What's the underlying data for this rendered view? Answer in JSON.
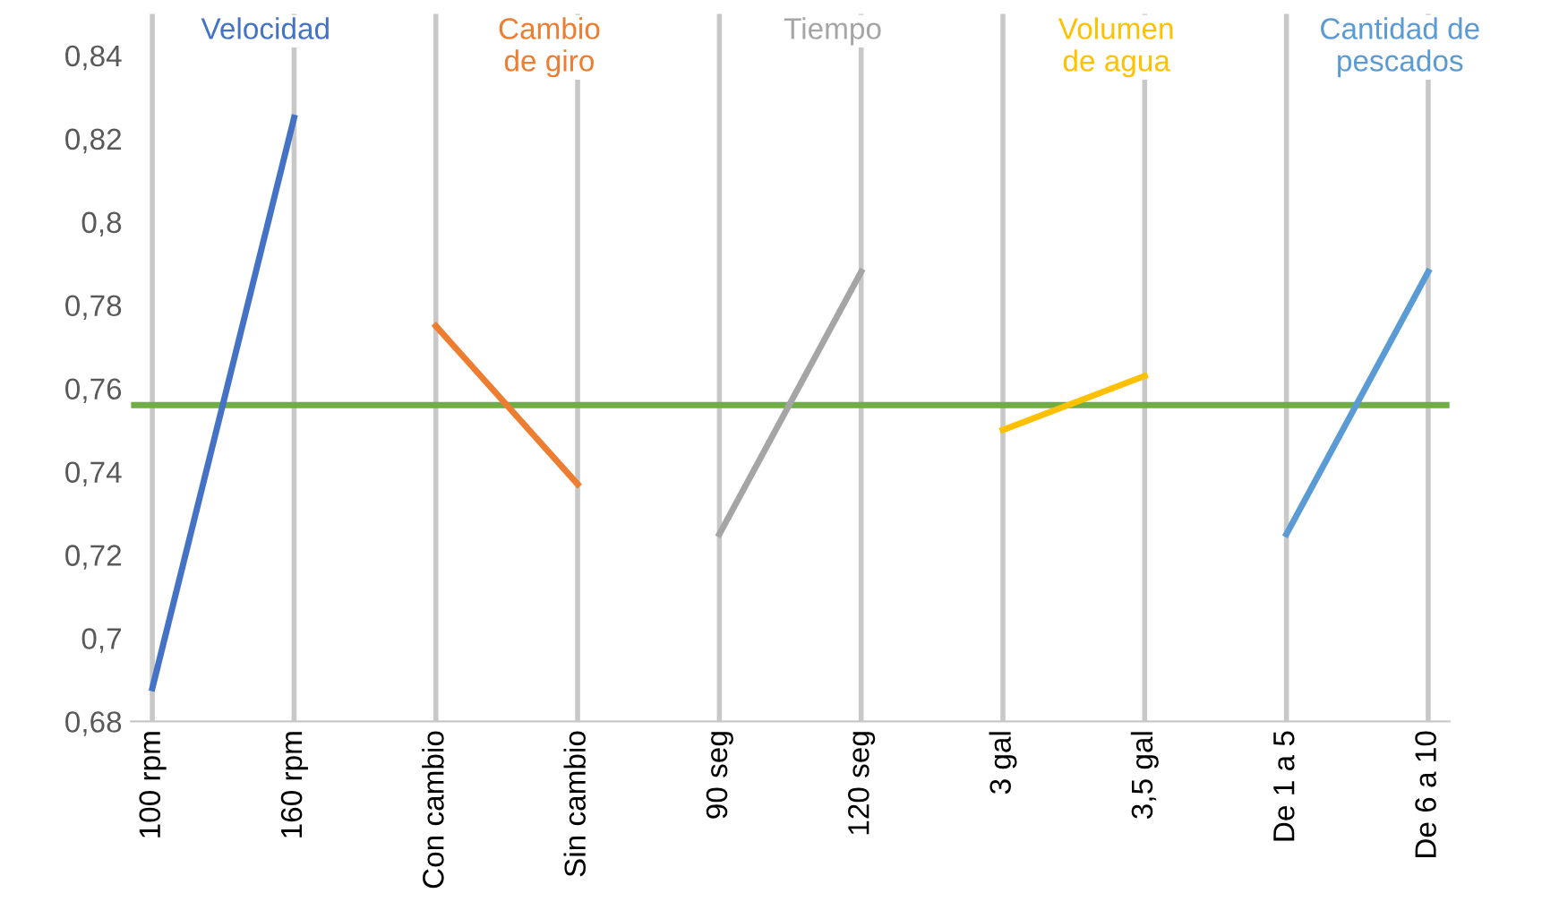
{
  "chart_data": {
    "type": "line",
    "categories": [
      "100 rpm",
      "160 rpm",
      "Con cambio",
      "Sin cambio",
      "90 seg",
      "120 seg",
      "3 gal",
      "3,5 gal",
      "De 1 a 5",
      "De 6 a 10"
    ],
    "series": [
      {
        "name": "Velocidad",
        "color": "#4472c4",
        "values": [
          0.688,
          0.825,
          null,
          null,
          null,
          null,
          null,
          null,
          null,
          null
        ]
      },
      {
        "name": "Cambio\nde giro",
        "color": "#ed7d31",
        "values": [
          null,
          null,
          0.775,
          0.737,
          null,
          null,
          null,
          null,
          null,
          null
        ]
      },
      {
        "name": "Tiempo",
        "color": "#a5a5a5",
        "values": [
          null,
          null,
          null,
          null,
          0.725,
          0.788,
          null,
          null,
          null,
          null
        ]
      },
      {
        "name": "Volumen\nde agua",
        "color": "#ffc000",
        "values": [
          null,
          null,
          null,
          null,
          null,
          null,
          0.75,
          0.763,
          null,
          null
        ]
      },
      {
        "name": "Cantidad de\npescados",
        "color": "#5b9bd5",
        "values": [
          null,
          null,
          null,
          null,
          null,
          null,
          null,
          null,
          0.725,
          0.788
        ]
      }
    ],
    "ylim": [
      0.68,
      0.85
    ],
    "yticks": [
      {
        "value": 0.68,
        "label": "0,68"
      },
      {
        "value": 0.7,
        "label": "0,7"
      },
      {
        "value": 0.72,
        "label": "0,72"
      },
      {
        "value": 0.74,
        "label": "0,74"
      },
      {
        "value": 0.76,
        "label": "0,76"
      },
      {
        "value": 0.78,
        "label": "0,78"
      },
      {
        "value": 0.8,
        "label": "0,8"
      },
      {
        "value": 0.82,
        "label": "0,82"
      },
      {
        "value": 0.84,
        "label": "0,84"
      }
    ],
    "ref_lines": [
      {
        "axis": "y",
        "value": 0.756,
        "color": "#70ad47"
      }
    ],
    "grid": "x",
    "legend": false,
    "marker": "none"
  }
}
